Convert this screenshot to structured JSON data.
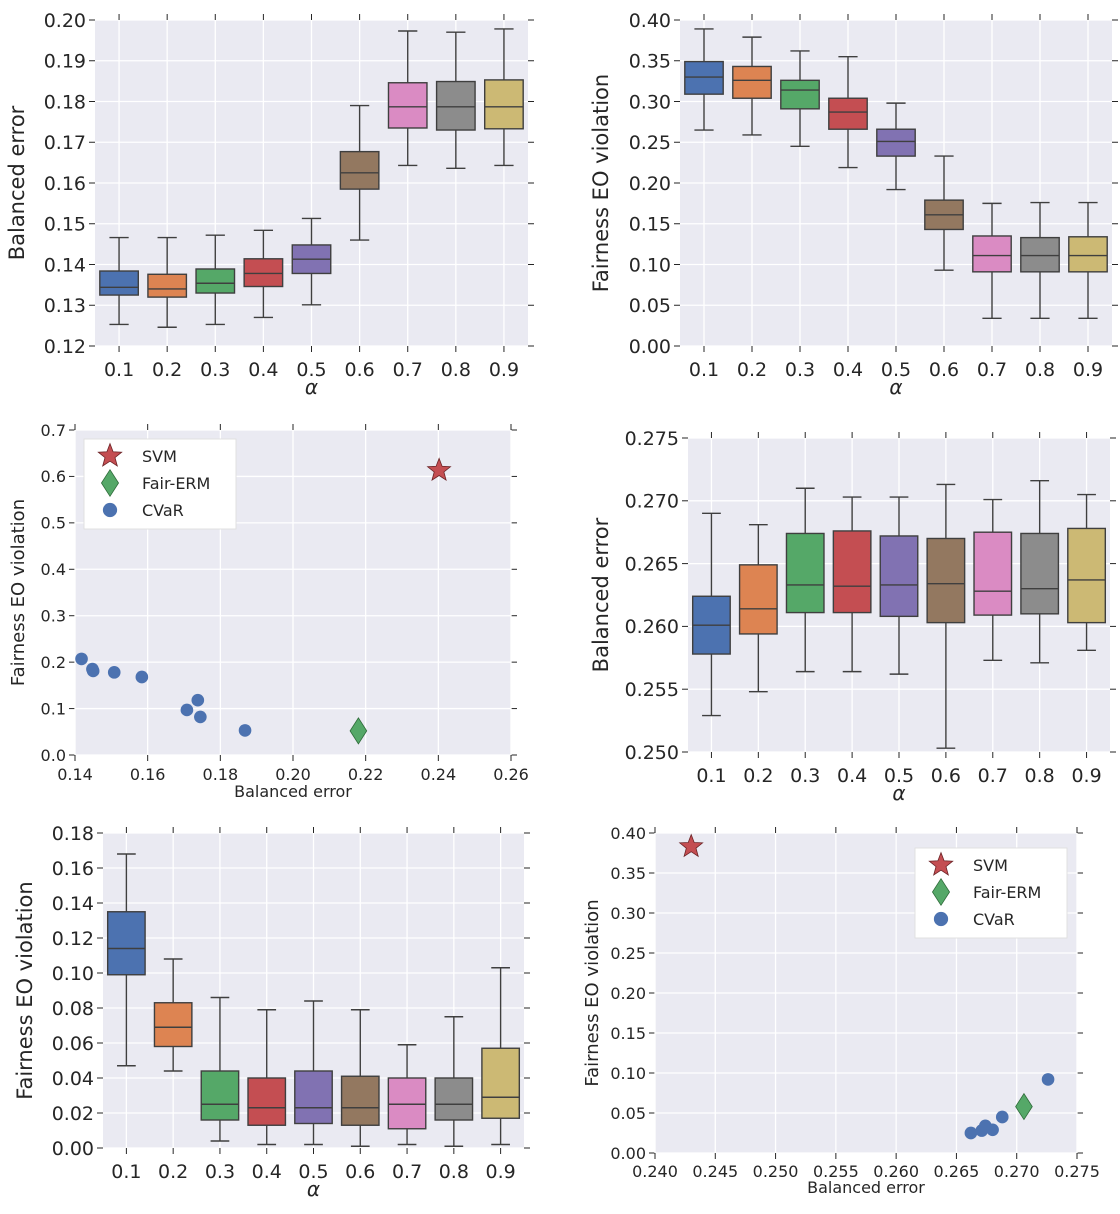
{
  "chart_data": [
    {
      "type": "box",
      "xlabel": "α",
      "ylabel": "Balanced error",
      "categories": [
        "0.1",
        "0.2",
        "0.3",
        "0.4",
        "0.5",
        "0.6",
        "0.7",
        "0.8",
        "0.9"
      ],
      "ylim": [
        0.12,
        0.2
      ],
      "yticks": [
        "0.12",
        "0.13",
        "0.14",
        "0.15",
        "0.16",
        "0.17",
        "0.18",
        "0.19",
        "0.20"
      ],
      "boxes": [
        {
          "whislo": 0.1253,
          "q1": 0.1325,
          "med": 0.1344,
          "q3": 0.1384,
          "whishi": 0.1466
        },
        {
          "whislo": 0.1246,
          "q1": 0.132,
          "med": 0.134,
          "q3": 0.1376,
          "whishi": 0.1466
        },
        {
          "whislo": 0.1253,
          "q1": 0.133,
          "med": 0.1354,
          "q3": 0.1389,
          "whishi": 0.1472
        },
        {
          "whislo": 0.127,
          "q1": 0.1346,
          "med": 0.1378,
          "q3": 0.1414,
          "whishi": 0.1484
        },
        {
          "whislo": 0.1301,
          "q1": 0.1378,
          "med": 0.1413,
          "q3": 0.1448,
          "whishi": 0.1513
        },
        {
          "whislo": 0.146,
          "q1": 0.1585,
          "med": 0.1625,
          "q3": 0.1677,
          "whishi": 0.179
        },
        {
          "whislo": 0.1643,
          "q1": 0.1735,
          "med": 0.1787,
          "q3": 0.1846,
          "whishi": 0.1973
        },
        {
          "whislo": 0.1636,
          "q1": 0.173,
          "med": 0.1787,
          "q3": 0.1849,
          "whishi": 0.197
        },
        {
          "whislo": 0.1643,
          "q1": 0.1733,
          "med": 0.1787,
          "q3": 0.1853,
          "whishi": 0.1978
        }
      ]
    },
    {
      "type": "box",
      "xlabel": "α",
      "ylabel": "Fairness EO violation",
      "categories": [
        "0.1",
        "0.2",
        "0.3",
        "0.4",
        "0.5",
        "0.6",
        "0.7",
        "0.8",
        "0.9"
      ],
      "ylim": [
        0.0,
        0.4
      ],
      "yticks": [
        "0.00",
        "0.05",
        "0.10",
        "0.15",
        "0.20",
        "0.25",
        "0.30",
        "0.35",
        "0.40"
      ],
      "boxes": [
        {
          "whislo": 0.265,
          "q1": 0.309,
          "med": 0.33,
          "q3": 0.349,
          "whishi": 0.389
        },
        {
          "whislo": 0.259,
          "q1": 0.304,
          "med": 0.326,
          "q3": 0.343,
          "whishi": 0.379
        },
        {
          "whislo": 0.245,
          "q1": 0.291,
          "med": 0.314,
          "q3": 0.326,
          "whishi": 0.362
        },
        {
          "whislo": 0.219,
          "q1": 0.266,
          "med": 0.287,
          "q3": 0.304,
          "whishi": 0.355
        },
        {
          "whislo": 0.192,
          "q1": 0.233,
          "med": 0.251,
          "q3": 0.266,
          "whishi": 0.298
        },
        {
          "whislo": 0.093,
          "q1": 0.143,
          "med": 0.161,
          "q3": 0.179,
          "whishi": 0.233
        },
        {
          "whislo": 0.034,
          "q1": 0.091,
          "med": 0.111,
          "q3": 0.135,
          "whishi": 0.175
        },
        {
          "whislo": 0.034,
          "q1": 0.091,
          "med": 0.111,
          "q3": 0.133,
          "whishi": 0.176
        },
        {
          "whislo": 0.034,
          "q1": 0.091,
          "med": 0.111,
          "q3": 0.134,
          "whishi": 0.176
        }
      ]
    },
    {
      "type": "scatter",
      "xlabel": "Balanced error",
      "ylabel": "Fairness EO violation",
      "xlim": [
        0.14,
        0.26
      ],
      "ylim": [
        0.0,
        0.7
      ],
      "xticks": [
        "0.14",
        "0.16",
        "0.18",
        "0.20",
        "0.22",
        "0.24",
        "0.26"
      ],
      "yticks": [
        "0.0",
        "0.1",
        "0.2",
        "0.3",
        "0.4",
        "0.5",
        "0.6",
        "0.7"
      ],
      "legend_position": "top-left",
      "series": [
        {
          "name": "SVM",
          "marker": "star",
          "color": "#c44e52",
          "points": [
            [
              0.2402,
              0.613
            ]
          ]
        },
        {
          "name": "Fair-ERM",
          "marker": "diamond",
          "color": "#55a868",
          "points": [
            [
              0.218,
              0.052
            ]
          ]
        },
        {
          "name": "CVaR",
          "marker": "circle",
          "color": "#4c72b0",
          "points": [
            [
              0.1418,
              0.207
            ],
            [
              0.1448,
              0.185
            ],
            [
              0.145,
              0.181
            ],
            [
              0.1508,
              0.178
            ],
            [
              0.1584,
              0.168
            ],
            [
              0.1708,
              0.097
            ],
            [
              0.1738,
              0.118
            ],
            [
              0.1745,
              0.082
            ],
            [
              0.1868,
              0.053
            ]
          ]
        }
      ]
    },
    {
      "type": "box",
      "xlabel": "α",
      "ylabel": "Balanced error",
      "categories": [
        "0.1",
        "0.2",
        "0.3",
        "0.4",
        "0.5",
        "0.6",
        "0.7",
        "0.8",
        "0.9"
      ],
      "ylim": [
        0.25,
        0.275
      ],
      "yticks": [
        "0.250",
        "0.255",
        "0.260",
        "0.265",
        "0.270",
        "0.275"
      ],
      "boxes": [
        {
          "whislo": 0.2529,
          "q1": 0.2578,
          "med": 0.2601,
          "q3": 0.2624,
          "whishi": 0.269
        },
        {
          "whislo": 0.2548,
          "q1": 0.2594,
          "med": 0.2614,
          "q3": 0.2649,
          "whishi": 0.2681
        },
        {
          "whislo": 0.2564,
          "q1": 0.2611,
          "med": 0.2633,
          "q3": 0.2674,
          "whishi": 0.271
        },
        {
          "whislo": 0.2564,
          "q1": 0.2611,
          "med": 0.2632,
          "q3": 0.2676,
          "whishi": 0.2703
        },
        {
          "whislo": 0.2562,
          "q1": 0.2608,
          "med": 0.2633,
          "q3": 0.2672,
          "whishi": 0.2703
        },
        {
          "whislo": 0.2503,
          "q1": 0.2603,
          "med": 0.2634,
          "q3": 0.267,
          "whishi": 0.2713
        },
        {
          "whislo": 0.2573,
          "q1": 0.2609,
          "med": 0.2628,
          "q3": 0.2675,
          "whishi": 0.2701
        },
        {
          "whislo": 0.2571,
          "q1": 0.261,
          "med": 0.263,
          "q3": 0.2674,
          "whishi": 0.2716
        },
        {
          "whislo": 0.2581,
          "q1": 0.2603,
          "med": 0.2637,
          "q3": 0.2678,
          "whishi": 0.2705
        }
      ]
    },
    {
      "type": "box",
      "xlabel": "α",
      "ylabel": "Fairness EO violation",
      "categories": [
        "0.1",
        "0.2",
        "0.3",
        "0.4",
        "0.5",
        "0.6",
        "0.7",
        "0.8",
        "0.9"
      ],
      "ylim": [
        0.0,
        0.18
      ],
      "yticks": [
        "0.00",
        "0.02",
        "0.04",
        "0.06",
        "0.08",
        "0.10",
        "0.12",
        "0.14",
        "0.16",
        "0.18"
      ],
      "boxes": [
        {
          "whislo": 0.047,
          "q1": 0.099,
          "med": 0.114,
          "q3": 0.135,
          "whishi": 0.168
        },
        {
          "whislo": 0.044,
          "q1": 0.058,
          "med": 0.069,
          "q3": 0.083,
          "whishi": 0.108
        },
        {
          "whislo": 0.004,
          "q1": 0.016,
          "med": 0.025,
          "q3": 0.044,
          "whishi": 0.086
        },
        {
          "whislo": 0.002,
          "q1": 0.013,
          "med": 0.023,
          "q3": 0.04,
          "whishi": 0.079
        },
        {
          "whislo": 0.002,
          "q1": 0.014,
          "med": 0.023,
          "q3": 0.044,
          "whishi": 0.084
        },
        {
          "whislo": 0.001,
          "q1": 0.013,
          "med": 0.023,
          "q3": 0.041,
          "whishi": 0.079
        },
        {
          "whislo": 0.002,
          "q1": 0.011,
          "med": 0.025,
          "q3": 0.04,
          "whishi": 0.059
        },
        {
          "whislo": 0.001,
          "q1": 0.016,
          "med": 0.025,
          "q3": 0.04,
          "whishi": 0.075
        },
        {
          "whislo": 0.002,
          "q1": 0.017,
          "med": 0.029,
          "q3": 0.057,
          "whishi": 0.103
        }
      ]
    },
    {
      "type": "scatter",
      "xlabel": "Balanced error",
      "ylabel": "Fairness EO violation",
      "xlim": [
        0.24,
        0.275
      ],
      "ylim": [
        0.0,
        0.4
      ],
      "xticks": [
        "0.240",
        "0.245",
        "0.250",
        "0.255",
        "0.260",
        "0.265",
        "0.270",
        "0.275"
      ],
      "yticks": [
        "0.00",
        "0.05",
        "0.10",
        "0.15",
        "0.20",
        "0.25",
        "0.30",
        "0.35",
        "0.40"
      ],
      "legend_position": "top-right",
      "series": [
        {
          "name": "SVM",
          "marker": "star",
          "color": "#c44e52",
          "points": [
            [
              0.243,
              0.383
            ]
          ]
        },
        {
          "name": "Fair-ERM",
          "marker": "diamond",
          "color": "#55a868",
          "points": [
            [
              0.2706,
              0.058
            ]
          ]
        },
        {
          "name": "CVaR",
          "marker": "circle",
          "color": "#4c72b0",
          "points": [
            [
              0.2662,
              0.025
            ],
            [
              0.2671,
              0.028
            ],
            [
              0.2674,
              0.034
            ],
            [
              0.268,
              0.029
            ],
            [
              0.2688,
              0.045
            ],
            [
              0.2726,
              0.092
            ]
          ]
        }
      ]
    }
  ],
  "colors": {
    "box_fills": [
      "#4c72b0",
      "#dd8452",
      "#55a868",
      "#c44e52",
      "#8172b2",
      "#937860",
      "#da8bc3",
      "#8c8c8c",
      "#ccb974"
    ],
    "axes_bg": "#eaeaf2",
    "grid": "#ffffff",
    "box_edge": "#3f3f3f"
  }
}
